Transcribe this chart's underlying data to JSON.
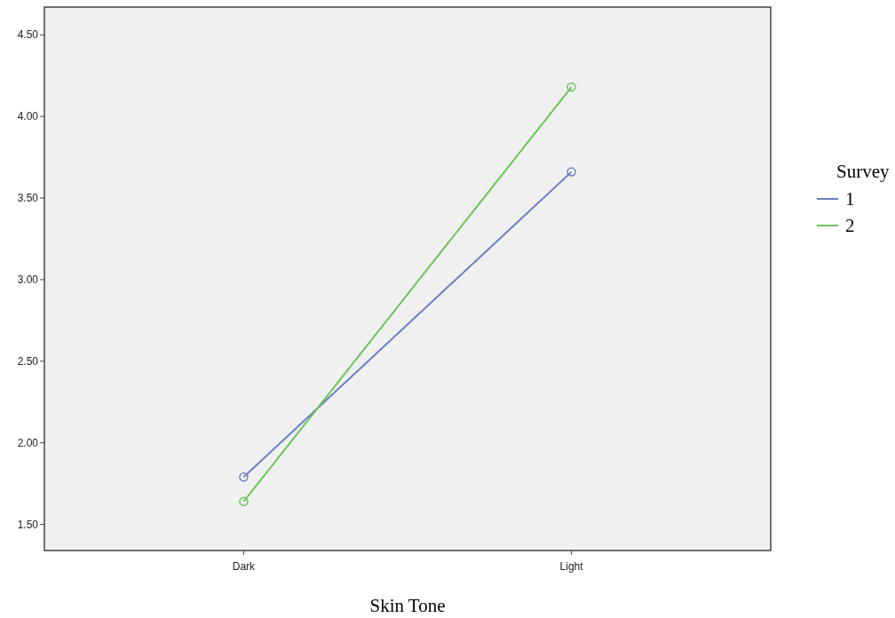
{
  "chart_data": {
    "type": "line",
    "xlabel": "Skin Tone",
    "legend_title": "Survey",
    "categories": [
      "Dark",
      "Light"
    ],
    "series": [
      {
        "name": "1",
        "color": "#6b7fc2",
        "values": [
          1.79,
          3.66
        ]
      },
      {
        "name": "2",
        "color": "#6cc35a",
        "values": [
          1.64,
          4.18
        ]
      }
    ],
    "ylim": [
      1.34,
      4.67
    ],
    "yticks": [
      {
        "value": 1.5,
        "label": "1.50"
      },
      {
        "value": 2,
        "label": "2.00"
      },
      {
        "value": 2.5,
        "label": "2.50"
      },
      {
        "value": 3,
        "label": "3.00"
      },
      {
        "value": 3.5,
        "label": "3.50"
      },
      {
        "value": 4,
        "label": "4.00"
      },
      {
        "value": 4.5,
        "label": "4.50"
      }
    ],
    "legend": "right",
    "marker": "circle",
    "line_style": "solid",
    "grid": false
  }
}
